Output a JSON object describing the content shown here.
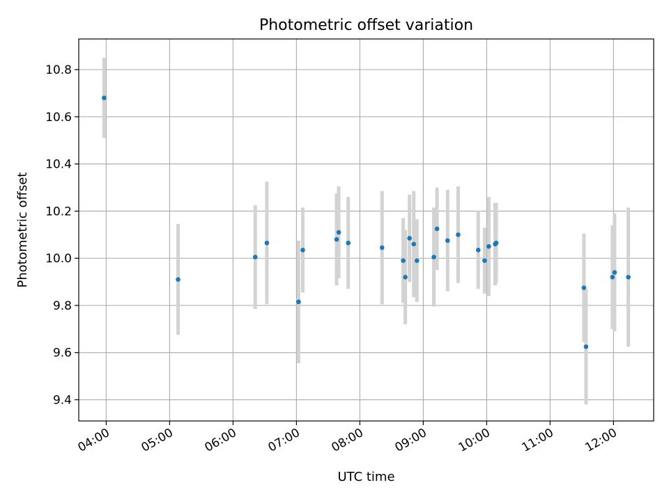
{
  "chart_data": {
    "type": "scatter",
    "title": "Photometric offset variation",
    "xlabel": "UTC time",
    "ylabel": "Photometric offset",
    "grid": true,
    "xlim": [
      "03:34",
      "12:38"
    ],
    "ylim": [
      9.31,
      10.93
    ],
    "x_ticks": [
      "04:00",
      "05:00",
      "06:00",
      "07:00",
      "08:00",
      "09:00",
      "10:00",
      "11:00",
      "12:00"
    ],
    "y_ticks": [
      "9.4",
      "9.6",
      "9.8",
      "10.0",
      "10.2",
      "10.4",
      "10.6",
      "10.8"
    ],
    "colors": {
      "marker": "#1f77b4",
      "errorbar": "#d3d3d3",
      "grid": "#b0b0b0"
    },
    "points": [
      {
        "x": "03:58",
        "y": 10.68,
        "err": 0.17
      },
      {
        "x": "05:08",
        "y": 9.91,
        "err": 0.235
      },
      {
        "x": "06:21",
        "y": 10.005,
        "err": 0.22
      },
      {
        "x": "06:32",
        "y": 10.065,
        "err": 0.26
      },
      {
        "x": "07:02",
        "y": 9.815,
        "err": 0.26
      },
      {
        "x": "07:06",
        "y": 10.035,
        "err": 0.18
      },
      {
        "x": "07:38",
        "y": 10.08,
        "err": 0.195
      },
      {
        "x": "07:40",
        "y": 10.11,
        "err": 0.195
      },
      {
        "x": "07:49",
        "y": 10.065,
        "err": 0.195
      },
      {
        "x": "08:21",
        "y": 10.045,
        "err": 0.24
      },
      {
        "x": "08:41",
        "y": 9.99,
        "err": 0.18
      },
      {
        "x": "08:43",
        "y": 9.92,
        "err": 0.2
      },
      {
        "x": "08:47",
        "y": 10.085,
        "err": 0.185
      },
      {
        "x": "08:51",
        "y": 10.06,
        "err": 0.225
      },
      {
        "x": "08:54",
        "y": 9.99,
        "err": 0.175
      },
      {
        "x": "09:10",
        "y": 10.005,
        "err": 0.21
      },
      {
        "x": "09:13",
        "y": 10.125,
        "err": 0.175
      },
      {
        "x": "09:23",
        "y": 10.075,
        "err": 0.215
      },
      {
        "x": "09:33",
        "y": 10.1,
        "err": 0.205
      },
      {
        "x": "09:52",
        "y": 10.035,
        "err": 0.165
      },
      {
        "x": "09:58",
        "y": 9.99,
        "err": 0.14
      },
      {
        "x": "10:02",
        "y": 10.05,
        "err": 0.21
      },
      {
        "x": "10:08",
        "y": 10.06,
        "err": 0.175
      },
      {
        "x": "10:09",
        "y": 10.065,
        "err": 0.17
      },
      {
        "x": "11:32",
        "y": 9.875,
        "err": 0.23
      },
      {
        "x": "11:34",
        "y": 9.625,
        "err": 0.245
      },
      {
        "x": "11:59",
        "y": 9.92,
        "err": 0.22
      },
      {
        "x": "12:01",
        "y": 9.94,
        "err": 0.25
      },
      {
        "x": "12:14",
        "y": 9.92,
        "err": 0.295
      }
    ]
  }
}
